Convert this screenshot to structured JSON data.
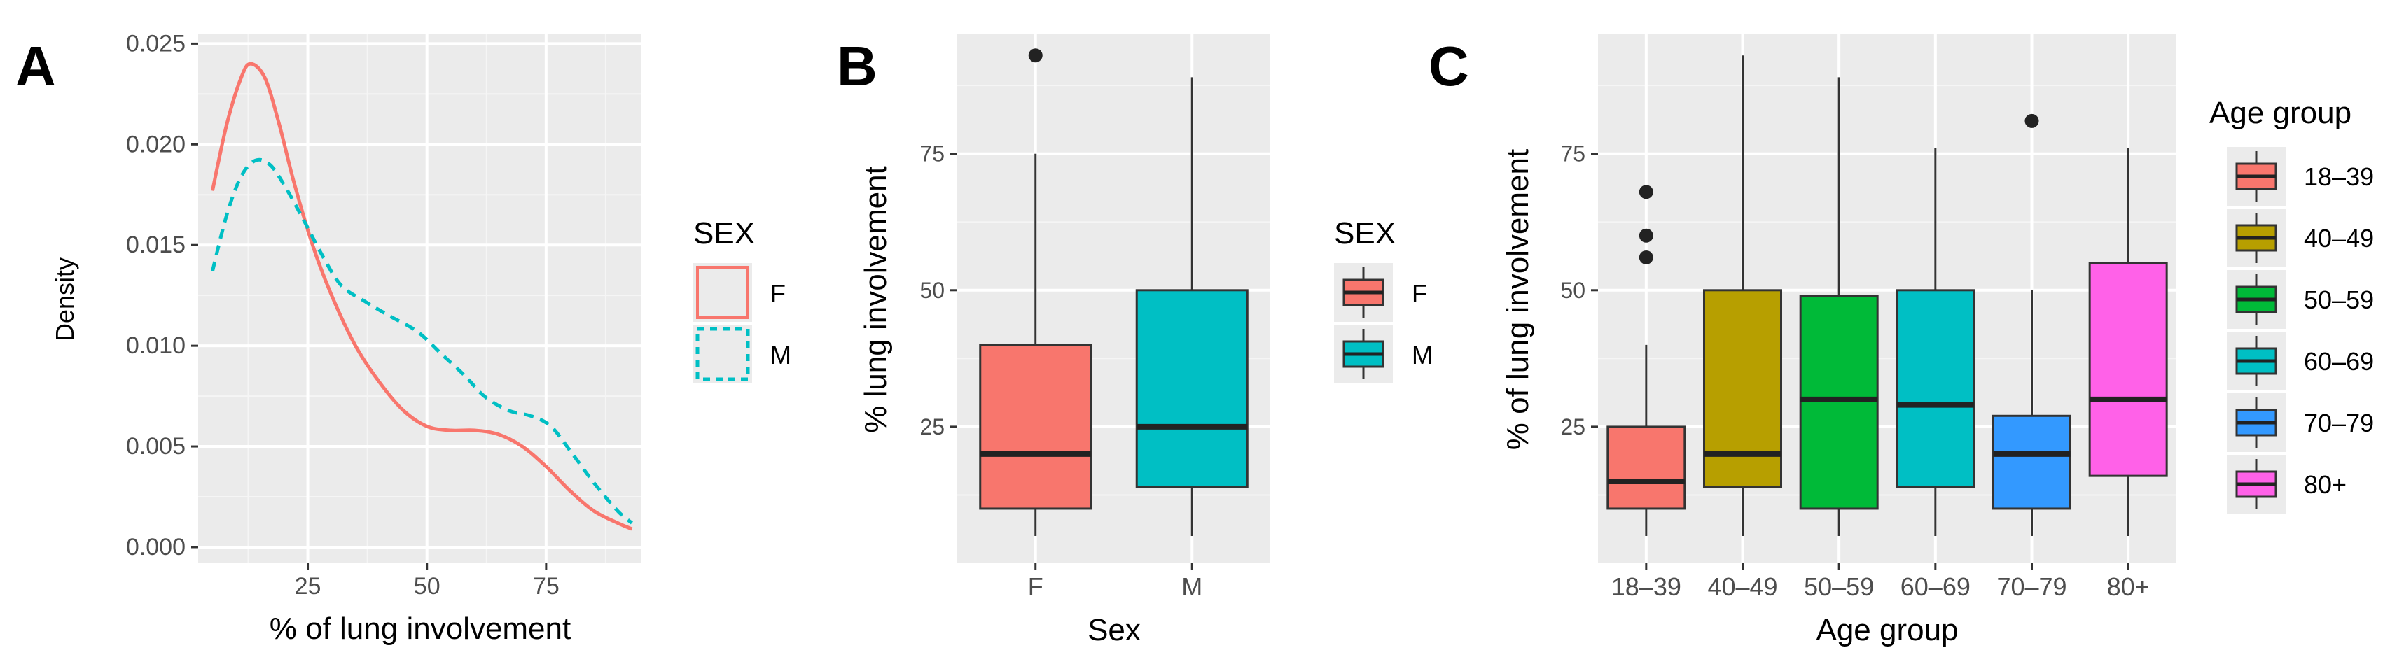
{
  "chart_data": [
    {
      "panel": "A",
      "type": "line",
      "xlabel": "% of lung involvement",
      "ylabel": "Density",
      "xlim": [
        2,
        95
      ],
      "ylim": [
        -0.0008,
        0.0255
      ],
      "xticks": [
        25,
        50,
        75
      ],
      "yticks": [
        0.0,
        0.005,
        0.01,
        0.015,
        0.02,
        0.025
      ],
      "ytick_labels": [
        "0.000",
        "0.005",
        "0.010",
        "0.015",
        "0.020",
        "0.025"
      ],
      "legend_title": "SEX",
      "series": [
        {
          "name": "F",
          "color": "#f8766d",
          "style": "solid",
          "points": [
            [
              5,
              0.0177
            ],
            [
              8,
              0.021
            ],
            [
              11,
              0.0233
            ],
            [
              13,
              0.024
            ],
            [
              16,
              0.0233
            ],
            [
              19,
              0.021
            ],
            [
              22,
              0.0182
            ],
            [
              26,
              0.015
            ],
            [
              30,
              0.0125
            ],
            [
              35,
              0.01
            ],
            [
              40,
              0.0082
            ],
            [
              45,
              0.0068
            ],
            [
              50,
              0.006
            ],
            [
              55,
              0.0058
            ],
            [
              60,
              0.0058
            ],
            [
              65,
              0.0056
            ],
            [
              70,
              0.005
            ],
            [
              75,
              0.004
            ],
            [
              80,
              0.0028
            ],
            [
              85,
              0.0018
            ],
            [
              90,
              0.0012
            ],
            [
              93,
              0.0009
            ]
          ]
        },
        {
          "name": "M",
          "color": "#00bfc4",
          "style": "dashed",
          "points": [
            [
              5,
              0.0137
            ],
            [
              8,
              0.0165
            ],
            [
              11,
              0.0184
            ],
            [
              14,
              0.0192
            ],
            [
              17,
              0.019
            ],
            [
              20,
              0.018
            ],
            [
              24,
              0.0163
            ],
            [
              28,
              0.0145
            ],
            [
              32,
              0.013
            ],
            [
              37,
              0.0122
            ],
            [
              42,
              0.0115
            ],
            [
              48,
              0.0107
            ],
            [
              53,
              0.0096
            ],
            [
              58,
              0.0085
            ],
            [
              62,
              0.0075
            ],
            [
              67,
              0.0068
            ],
            [
              72,
              0.0065
            ],
            [
              76,
              0.006
            ],
            [
              80,
              0.0048
            ],
            [
              85,
              0.0032
            ],
            [
              90,
              0.0018
            ],
            [
              93,
              0.0012
            ]
          ]
        }
      ]
    },
    {
      "panel": "B",
      "type": "box",
      "xlabel": "Sex",
      "ylabel": "% lung involvement",
      "ylim": [
        0,
        97
      ],
      "yticks": [
        25,
        50,
        75
      ],
      "categories": [
        "F",
        "M"
      ],
      "legend_title": "SEX",
      "boxes": [
        {
          "name": "F",
          "color": "#f8766d",
          "min": 5,
          "q1": 10,
          "median": 20,
          "q3": 40,
          "max": 75,
          "outliers": [
            93
          ]
        },
        {
          "name": "M",
          "color": "#00bfc4",
          "min": 5,
          "q1": 14,
          "median": 25,
          "q3": 50,
          "max": 89,
          "outliers": []
        }
      ]
    },
    {
      "panel": "C",
      "type": "box",
      "xlabel": "Age group",
      "ylabel": "% of lung involvement",
      "ylim": [
        0,
        97
      ],
      "yticks": [
        25,
        50,
        75
      ],
      "categories": [
        "18–39",
        "40–49",
        "50–59",
        "60–69",
        "70–79",
        "80+"
      ],
      "legend_title": "Age group",
      "boxes": [
        {
          "name": "18–39",
          "color": "#f8766d",
          "min": 5,
          "q1": 10,
          "median": 15,
          "q3": 25,
          "max": 40,
          "outliers": [
            56,
            60,
            68
          ]
        },
        {
          "name": "40–49",
          "color": "#b79f00",
          "min": 5,
          "q1": 14,
          "median": 20,
          "q3": 50,
          "max": 93,
          "outliers": []
        },
        {
          "name": "50–59",
          "color": "#00ba38",
          "min": 5,
          "q1": 10,
          "median": 30,
          "q3": 49,
          "max": 89,
          "outliers": []
        },
        {
          "name": "60–69",
          "color": "#00bfc4",
          "min": 5,
          "q1": 14,
          "median": 29,
          "q3": 50,
          "max": 76,
          "outliers": []
        },
        {
          "name": "70–79",
          "color": "#3399ff",
          "min": 5,
          "q1": 10,
          "median": 20,
          "q3": 27,
          "max": 50,
          "outliers": [
            81
          ]
        },
        {
          "name": "80+",
          "color": "#ff61e8",
          "min": 5,
          "q1": 16,
          "median": 30,
          "q3": 55,
          "max": 76,
          "outliers": []
        }
      ]
    }
  ]
}
